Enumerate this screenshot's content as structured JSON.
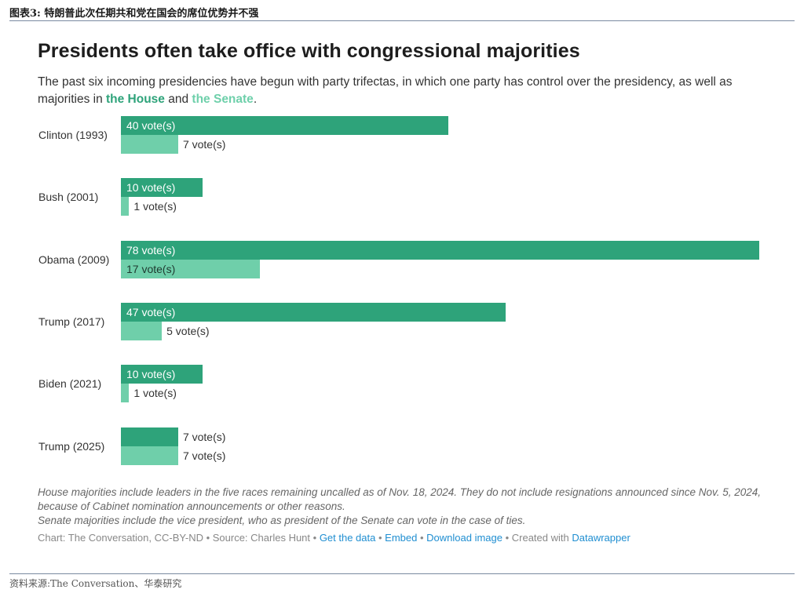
{
  "report": {
    "figure_label": "图表3:",
    "figure_title": "特朗普此次任期共和党在国会的席位优势并不强",
    "source_footer": "资料来源:The Conversation、华泰研究"
  },
  "chart_header": {
    "title": "Presidents often take office with congressional majorities",
    "subtitle_pre": "The past six incoming presidencies have begun with party trifectas, in which one party has control over the presidency, as well as majorities in ",
    "house_label": "the House",
    "and_text": " and ",
    "senate_label": "the Senate",
    "period": "."
  },
  "chart_data": {
    "type": "bar",
    "orientation": "horizontal",
    "title": "Presidents often take office with congressional majorities",
    "categories": [
      "Clinton (1993)",
      "Bush (2001)",
      "Obama (2009)",
      "Trump (2017)",
      "Biden (2021)",
      "Trump (2025)"
    ],
    "series": [
      {
        "name": "the House",
        "values": [
          40,
          10,
          78,
          47,
          10,
          7
        ],
        "color": "#2ea37a",
        "labels": [
          "40 vote(s)",
          "10 vote(s)",
          "78 vote(s)",
          "47 vote(s)",
          "10 vote(s)",
          "7 vote(s)"
        ]
      },
      {
        "name": "the Senate",
        "values": [
          7,
          1,
          17,
          5,
          1,
          7
        ],
        "color": "#6fcfaa",
        "labels": [
          "7 vote(s)",
          "1 vote(s)",
          "17 vote(s)",
          "5 vote(s)",
          "1 vote(s)",
          "7 vote(s)"
        ]
      }
    ],
    "xlim": [
      0,
      78
    ],
    "unit": "vote(s)"
  },
  "notes": {
    "house_note": "House majorities include leaders in the five races remaining uncalled as of Nov. 18, 2024. They do not include resignations announced since Nov. 5, 2024, because of Cabinet nomination announcements or other reasons.",
    "senate_note": "Senate majorities include the vice president, who as president of the Senate can vote in the case of ties."
  },
  "credits": {
    "prefix": "Chart: The Conversation, CC-BY-ND • Source: Charles Hunt • ",
    "get_data": "Get the data",
    "sep1": " • ",
    "embed": "Embed",
    "sep2": " • ",
    "download": "Download image",
    "created": " • Created with ",
    "datawrapper": "Datawrapper"
  }
}
